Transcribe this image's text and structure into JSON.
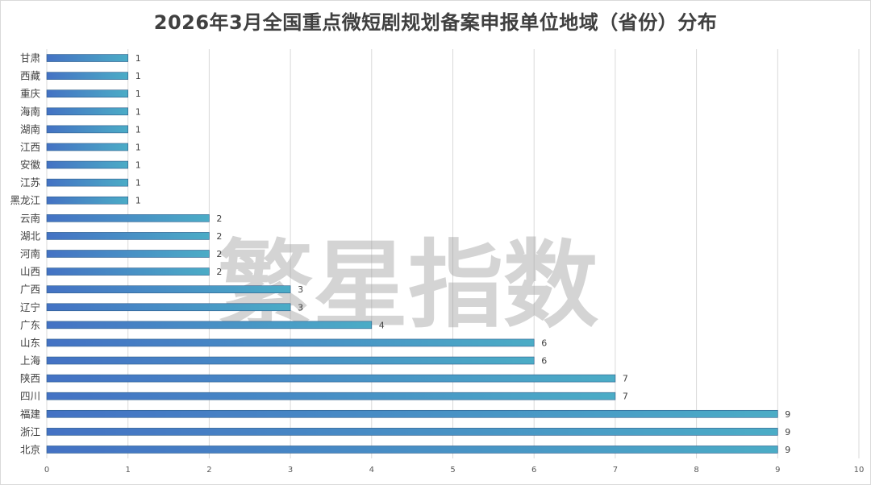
{
  "chart_data": {
    "type": "bar",
    "orientation": "horizontal",
    "title": "2026年3月全国重点微短剧规划备案申报单位地域（省份）分布",
    "categories": [
      "甘肃",
      "西藏",
      "重庆",
      "海南",
      "湖南",
      "江西",
      "安徽",
      "江苏",
      "黑龙江",
      "云南",
      "湖北",
      "河南",
      "山西",
      "广西",
      "辽宁",
      "广东",
      "山东",
      "上海",
      "陕西",
      "四川",
      "福建",
      "浙江",
      "北京"
    ],
    "values": [
      1,
      1,
      1,
      1,
      1,
      1,
      1,
      1,
      1,
      2,
      2,
      2,
      2,
      3,
      3,
      4,
      6,
      6,
      7,
      7,
      9,
      9,
      9
    ],
    "xlim": [
      0,
      10
    ],
    "x_ticks": [
      "0",
      "1",
      "2",
      "3",
      "4",
      "5",
      "6",
      "7",
      "8",
      "9",
      "10"
    ],
    "grid": true,
    "legend": "none",
    "data_labels": true
  },
  "watermark": "繁星指数",
  "colors": {
    "bar_start": "#4472c4",
    "bar_end": "#4bacc6",
    "gridline": "#d9d9d9",
    "text": "#404040"
  }
}
